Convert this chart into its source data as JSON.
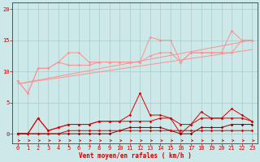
{
  "xlabel": "Vent moyen/en rafales ( km/h )",
  "bg_color": "#cce8e8",
  "grid_color": "#aacccc",
  "x_ticks": [
    0,
    1,
    2,
    3,
    4,
    5,
    6,
    7,
    8,
    9,
    10,
    11,
    12,
    13,
    14,
    15,
    16,
    17,
    18,
    19,
    20,
    21,
    22,
    23
  ],
  "ylim": [
    -1.5,
    21
  ],
  "xlim": [
    -0.5,
    23.5
  ],
  "yticks": [
    0,
    5,
    10,
    15,
    20
  ],
  "line_light1": {
    "color": "#ff9090",
    "x": [
      0,
      1,
      2,
      3,
      4,
      5,
      6,
      7,
      8,
      9,
      10,
      11,
      12,
      13,
      14,
      15,
      16,
      17,
      18,
      19,
      20,
      21,
      22,
      23
    ],
    "y": [
      8.5,
      6.5,
      10.5,
      10.5,
      11.5,
      13.0,
      13.0,
      11.5,
      11.5,
      11.5,
      11.5,
      11.5,
      11.5,
      15.5,
      15.0,
      15.0,
      11.5,
      13.0,
      13.0,
      13.0,
      13.0,
      16.5,
      15.0,
      15.0
    ]
  },
  "line_light2": {
    "color": "#ff9090",
    "x": [
      0,
      1,
      2,
      3,
      4,
      5,
      6,
      7,
      8,
      9,
      10,
      11,
      12,
      13,
      14,
      15,
      16,
      17,
      18,
      19,
      20,
      21,
      22,
      23
    ],
    "y": [
      8.5,
      6.5,
      10.5,
      10.5,
      11.5,
      11.0,
      11.0,
      11.0,
      11.5,
      11.5,
      11.5,
      11.5,
      11.5,
      12.5,
      13.0,
      13.0,
      11.5,
      13.0,
      13.0,
      13.0,
      13.0,
      13.0,
      15.0,
      15.0
    ]
  },
  "line_trend1": {
    "color": "#ff9090",
    "x": [
      0,
      23
    ],
    "y": [
      8.0,
      13.5
    ]
  },
  "line_trend2": {
    "color": "#ff9090",
    "x": [
      0,
      23
    ],
    "y": [
      8.0,
      15.0
    ]
  },
  "line_dark1": {
    "color": "#dd0000",
    "x": [
      0,
      1,
      2,
      3,
      4,
      5,
      6,
      7,
      8,
      9,
      10,
      11,
      12,
      13,
      14,
      15,
      16,
      17,
      18,
      19,
      20,
      21,
      22,
      23
    ],
    "y": [
      0.0,
      0.0,
      2.5,
      0.5,
      1.0,
      1.5,
      1.5,
      1.5,
      2.0,
      2.0,
      2.0,
      3.0,
      6.5,
      3.0,
      3.0,
      2.5,
      0.0,
      1.5,
      3.5,
      2.5,
      2.5,
      4.0,
      3.0,
      2.0
    ]
  },
  "line_dark2": {
    "color": "#dd0000",
    "x": [
      0,
      1,
      2,
      3,
      4,
      5,
      6,
      7,
      8,
      9,
      10,
      11,
      12,
      13,
      14,
      15,
      16,
      17,
      18,
      19,
      20,
      21,
      22,
      23
    ],
    "y": [
      0.0,
      0.0,
      2.5,
      0.5,
      1.0,
      1.5,
      1.5,
      1.5,
      2.0,
      2.0,
      2.0,
      2.0,
      2.0,
      2.0,
      2.5,
      2.5,
      1.5,
      1.5,
      2.5,
      2.5,
      2.5,
      2.5,
      2.5,
      2.0
    ]
  },
  "line_dark3": {
    "color": "#880000",
    "x": [
      0,
      1,
      2,
      3,
      4,
      5,
      6,
      7,
      8,
      9,
      10,
      11,
      12,
      13,
      14,
      15,
      16,
      17,
      18,
      19,
      20,
      21,
      22,
      23
    ],
    "y": [
      0.0,
      0.0,
      0.0,
      0.0,
      0.0,
      0.0,
      0.0,
      0.0,
      0.0,
      0.0,
      0.5,
      1.0,
      1.0,
      1.0,
      1.0,
      0.5,
      0.0,
      0.0,
      1.0,
      1.0,
      1.0,
      1.5,
      1.5,
      1.5
    ]
  },
  "line_dark4": {
    "color": "#dd0000",
    "x": [
      0,
      1,
      2,
      3,
      4,
      5,
      6,
      7,
      8,
      9,
      10,
      11,
      12,
      13,
      14,
      15,
      16,
      17,
      18,
      19,
      20,
      21,
      22,
      23
    ],
    "y": [
      0.0,
      0.0,
      0.0,
      0.0,
      0.0,
      0.5,
      0.5,
      0.5,
      0.5,
      0.5,
      0.5,
      0.5,
      0.5,
      0.5,
      0.5,
      0.5,
      0.5,
      0.5,
      0.5,
      0.5,
      0.5,
      0.5,
      0.5,
      0.5
    ]
  },
  "marker": "D",
  "markersize": 1.8,
  "linewidth": 0.7,
  "tick_color": "#cc0000",
  "tick_fontsize": 5.0,
  "xlabel_fontsize": 5.5,
  "xlabel_color": "#cc0000",
  "spine_color": "#cc0000"
}
